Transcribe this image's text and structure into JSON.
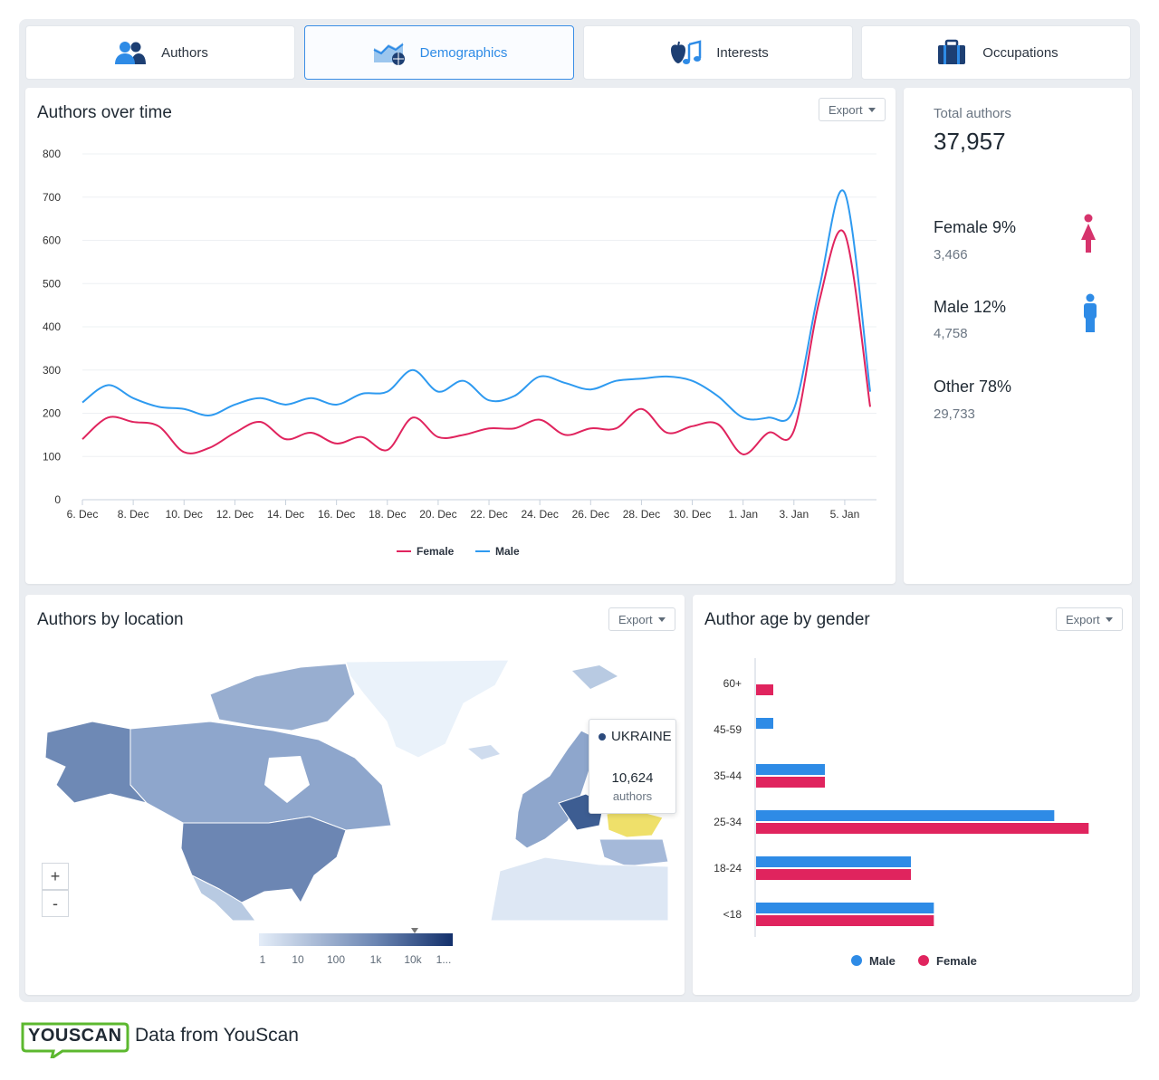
{
  "tabs": [
    {
      "label": "Authors",
      "icon": "users-icon"
    },
    {
      "label": "Demographics",
      "icon": "demographics-icon"
    },
    {
      "label": "Interests",
      "icon": "interests-icon"
    },
    {
      "label": "Occupations",
      "icon": "briefcase-icon"
    }
  ],
  "active_tab": "Demographics",
  "authors_over_time": {
    "title": "Authors over time",
    "export_label": "Export"
  },
  "summary": {
    "total_label": "Total authors",
    "total_value": "37,957",
    "female": {
      "label": "Female 9%",
      "count": "3,466",
      "color": "#d6336c"
    },
    "male": {
      "label": "Male 12%",
      "count": "4,758",
      "color": "#2e8be6"
    },
    "other": {
      "label": "Other 78%",
      "count": "29,733"
    }
  },
  "location": {
    "title": "Authors by location",
    "export_label": "Export",
    "zoom_in": "+",
    "zoom_out": "-",
    "tooltip": {
      "country": "UKRAINE",
      "value": "10,624",
      "unit": "authors"
    },
    "scale_labels": [
      "1",
      "10",
      "100",
      "1k",
      "10k",
      "1..."
    ]
  },
  "age_gender": {
    "title": "Author age by gender",
    "export_label": "Export"
  },
  "footer": {
    "logo": "YOUSCAN",
    "text": "Data from YouScan"
  },
  "chart_data": [
    {
      "type": "line",
      "title": "Authors over time",
      "x": [
        "6. Dec",
        "7. Dec",
        "8. Dec",
        "9. Dec",
        "10. Dec",
        "11. Dec",
        "12. Dec",
        "13. Dec",
        "14. Dec",
        "15. Dec",
        "16. Dec",
        "17. Dec",
        "18. Dec",
        "19. Dec",
        "20. Dec",
        "21. Dec",
        "22. Dec",
        "23. Dec",
        "24. Dec",
        "25. Dec",
        "26. Dec",
        "27. Dec",
        "28. Dec",
        "29. Dec",
        "30. Dec",
        "31. Dec",
        "1. Jan",
        "2. Jan",
        "3. Jan",
        "4. Jan",
        "5. Jan",
        "6. Jan"
      ],
      "tick_labels": [
        "6. Dec",
        "8. Dec",
        "10. Dec",
        "12. Dec",
        "14. Dec",
        "16. Dec",
        "18. Dec",
        "20. Dec",
        "22. Dec",
        "24. Dec",
        "26. Dec",
        "28. Dec",
        "30. Dec",
        "1. Jan",
        "3. Jan",
        "5. Jan"
      ],
      "series": [
        {
          "name": "Female",
          "color": "#e0245e",
          "values": [
            140,
            190,
            180,
            170,
            110,
            120,
            155,
            180,
            140,
            155,
            130,
            145,
            115,
            190,
            145,
            150,
            165,
            165,
            185,
            150,
            165,
            165,
            210,
            155,
            170,
            175,
            105,
            155,
            160,
            460,
            615,
            215
          ]
        },
        {
          "name": "Male",
          "color": "#2e9af0",
          "values": [
            225,
            265,
            235,
            215,
            210,
            195,
            220,
            235,
            220,
            235,
            220,
            245,
            250,
            300,
            250,
            275,
            230,
            240,
            285,
            270,
            255,
            275,
            280,
            285,
            275,
            240,
            190,
            190,
            210,
            490,
            710,
            250
          ]
        }
      ],
      "ylim": [
        0,
        800
      ],
      "yticks": [
        0,
        100,
        200,
        300,
        400,
        500,
        600,
        700,
        800
      ],
      "legend": "bottom"
    },
    {
      "type": "bar",
      "orientation": "horizontal",
      "title": "Author age by gender",
      "categories": [
        "60+",
        "45-59",
        "35-44",
        "25-34",
        "18-24",
        "<18"
      ],
      "series": [
        {
          "name": "Male",
          "color": "#2e8be6",
          "values": [
            0,
            3,
            12,
            52,
            27,
            31
          ]
        },
        {
          "name": "Female",
          "color": "#e0245e",
          "values": [
            3,
            0,
            12,
            58,
            27,
            31
          ]
        }
      ],
      "legend": "bottom"
    }
  ]
}
